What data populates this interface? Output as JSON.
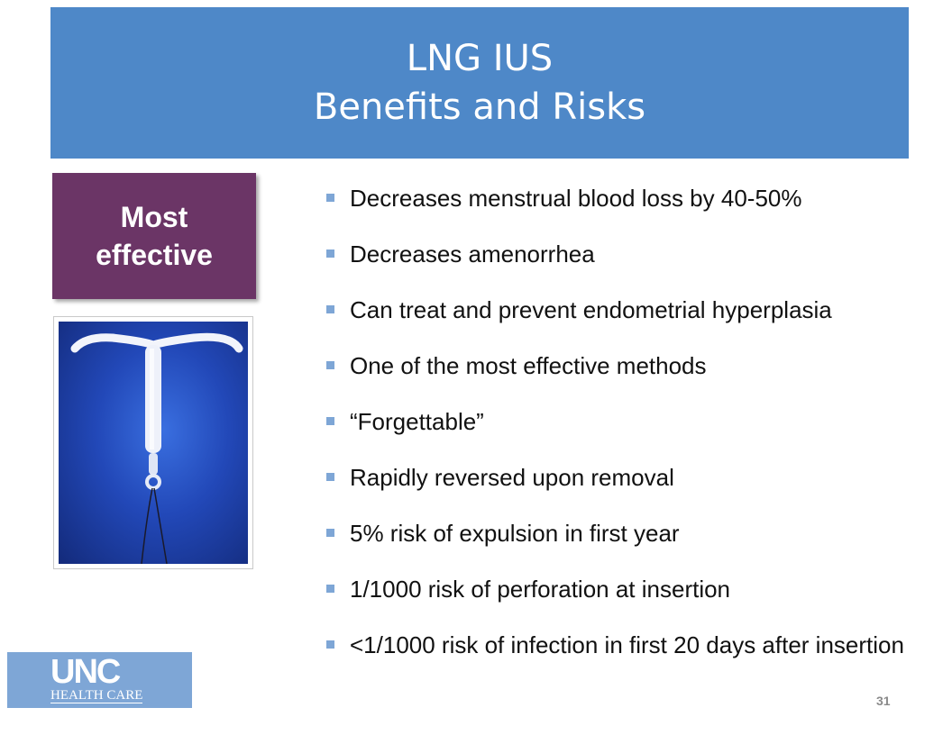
{
  "title": {
    "line1": "LNG IUS",
    "line2": "Benefits and Risks"
  },
  "badge": {
    "line1": "Most",
    "line2": "effective"
  },
  "bullets": [
    "Decreases menstrual blood loss by 40-50%",
    "Decreases amenorrhea",
    "Can treat and prevent endometrial hyperplasia",
    "One of the most effective methods",
    "“Forgettable”",
    "Rapidly reversed upon removal",
    "5% risk of expulsion in first year",
    "1/1000 risk of perforation at insertion",
    "<1/1000 risk of infection in first 20 days after insertion"
  ],
  "logo": {
    "mark": "UNC",
    "subtitle": "HEALTH CARE"
  },
  "page_number": "31",
  "colors": {
    "title_bar": "#4e88c8",
    "badge": "#6b3566",
    "bullet": "#7ea6d6",
    "logo_bg": "#7ea6d6"
  }
}
